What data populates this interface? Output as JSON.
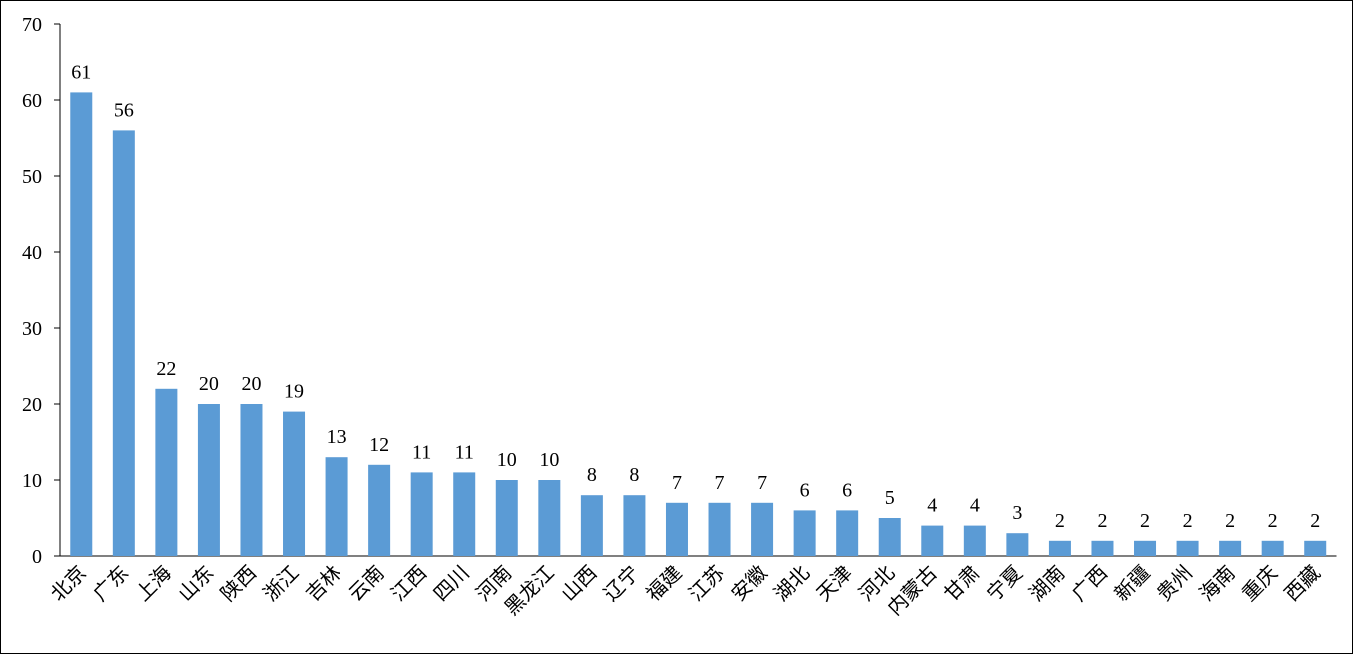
{
  "chart_data": {
    "type": "bar",
    "categories": [
      "北京",
      "广东",
      "上海",
      "山东",
      "陕西",
      "浙江",
      "吉林",
      "云南",
      "江西",
      "四川",
      "河南",
      "黑龙江",
      "山西",
      "辽宁",
      "福建",
      "江苏",
      "安徽",
      "湖北",
      "天津",
      "河北",
      "内蒙古",
      "甘肃",
      "宁夏",
      "湖南",
      "广西",
      "新疆",
      "贵州",
      "海南",
      "重庆",
      "西藏"
    ],
    "values": [
      61,
      56,
      22,
      20,
      20,
      19,
      13,
      12,
      11,
      11,
      10,
      10,
      8,
      8,
      7,
      7,
      7,
      6,
      6,
      5,
      4,
      4,
      3,
      2,
      2,
      2,
      2,
      2,
      2,
      2
    ],
    "color": "#5b9bd5",
    "ylim": [
      0,
      70
    ],
    "yticks": [
      0,
      10,
      20,
      30,
      40,
      50,
      60,
      70
    ],
    "grid": false,
    "data_labels": true
  }
}
